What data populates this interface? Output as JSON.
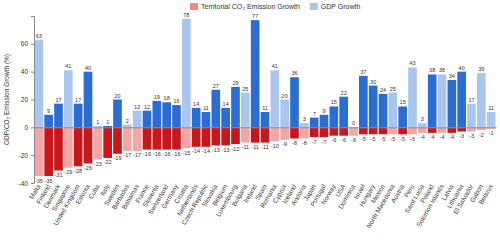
{
  "chart_data": {
    "type": "bar",
    "y_label": "GDP/CO₂ Emission Growth (%)",
    "categories": [
      "Malta",
      "Finland",
      "Denmark",
      "Singapore",
      "United Kingdom",
      "Estonia",
      "Cuba",
      "Italy",
      "Sweden",
      "Barbados",
      "Bahamas",
      "France",
      "Slovenia",
      "Switzerland",
      "Germany",
      "Croatia",
      "Netherlands",
      "Czech Republic",
      "Slovakia",
      "Belgium",
      "Luxembourg",
      "Bulgaria",
      "Ireland",
      "Spain",
      "Romania",
      "Cyprus",
      "Iceland",
      "Andorra",
      "Japan",
      "Portugal",
      "Norway",
      "USA",
      "Dominica",
      "Israel",
      "Hungary",
      "Mexico",
      "North Macedonia",
      "Austria",
      "Peru",
      "Saint Lucia",
      "Poland",
      "Solomon Islands",
      "Latvia",
      "Lithuania",
      "El Salvador",
      "Gabon",
      "Belarus"
    ],
    "series": [
      {
        "name": "Territorial CO₂ Emission Growth",
        "color": "#f08a8a",
        "values": [
          -35,
          -35,
          -31,
          -29,
          -28,
          -26,
          -23,
          -22,
          -19,
          -17,
          -17,
          -16,
          -16,
          -16,
          -16,
          -15,
          -14,
          -14,
          -13,
          -13,
          -12,
          -11,
          -11,
          -11,
          -10,
          -9,
          -8,
          -8,
          -7,
          -7,
          -6,
          -6,
          -6,
          -5,
          -5,
          -5,
          -5,
          -5,
          -5,
          -4,
          -4,
          -4,
          -4,
          -3,
          -3,
          -2,
          -1
        ],
        "colors": [
          "#f4a6a6",
          "#c8161d",
          "#c8161d",
          "#f4a6a6",
          "#c8161d",
          "#c8161d",
          "#f4a6a6",
          "#c8161d",
          "#c8161d",
          "#f4a6a6",
          "#f4a6a6",
          "#c8161d",
          "#c8161d",
          "#c8161d",
          "#c8161d",
          "#f4a6a6",
          "#c8161d",
          "#c8161d",
          "#c8161d",
          "#c8161d",
          "#c8161d",
          "#f4a6a6",
          "#c8161d",
          "#c8161d",
          "#f4a6a6",
          "#f4a6a6",
          "#c8161d",
          "#f4a6a6",
          "#c8161d",
          "#c8161d",
          "#c8161d",
          "#c8161d",
          "#f4a6a6",
          "#c8161d",
          "#c8161d",
          "#c8161d",
          "#f4a6a6",
          "#c8161d",
          "#f4a6a6",
          "#f4a6a6",
          "#c8161d",
          "#f4a6a6",
          "#c8161d",
          "#c8161d",
          "#f4a6a6",
          "#f4a6a6",
          "#f4a6a6"
        ]
      },
      {
        "name": "GDP Growth",
        "color": "#a9c6ee",
        "values": [
          63,
          9,
          17,
          41,
          17,
          40,
          1,
          1,
          20,
          2,
          12,
          12,
          19,
          18,
          16,
          78,
          14,
          11,
          27,
          14,
          29,
          25,
          77,
          11,
          41,
          20,
          36,
          3,
          7,
          9,
          15,
          22,
          0,
          37,
          30,
          24,
          25,
          15,
          43,
          3,
          38,
          38,
          34,
          40,
          17,
          39,
          11
        ],
        "colors": [
          "#a9c6ee",
          "#2a6dd3",
          "#2a6dd3",
          "#a9c6ee",
          "#2a6dd3",
          "#2a6dd3",
          "#a9c6ee",
          "#2a6dd3",
          "#2a6dd3",
          "#a9c6ee",
          "#a9c6ee",
          "#2a6dd3",
          "#2a6dd3",
          "#2a6dd3",
          "#2a6dd3",
          "#a9c6ee",
          "#2a6dd3",
          "#2a6dd3",
          "#2a6dd3",
          "#2a6dd3",
          "#2a6dd3",
          "#a9c6ee",
          "#2a6dd3",
          "#2a6dd3",
          "#a9c6ee",
          "#a9c6ee",
          "#2a6dd3",
          "#a9c6ee",
          "#2a6dd3",
          "#2a6dd3",
          "#2a6dd3",
          "#2a6dd3",
          "#a9c6ee",
          "#2a6dd3",
          "#2a6dd3",
          "#2a6dd3",
          "#a9c6ee",
          "#2a6dd3",
          "#a9c6ee",
          "#a9c6ee",
          "#2a6dd3",
          "#a9c6ee",
          "#2a6dd3",
          "#2a6dd3",
          "#a9c6ee",
          "#a9c6ee",
          "#a9c6ee"
        ]
      }
    ],
    "ylim": [
      -40,
      80
    ],
    "yticks": [
      -40,
      -20,
      0,
      20,
      40,
      60
    ],
    "data_labels": true,
    "legend": "top",
    "grid": false
  }
}
